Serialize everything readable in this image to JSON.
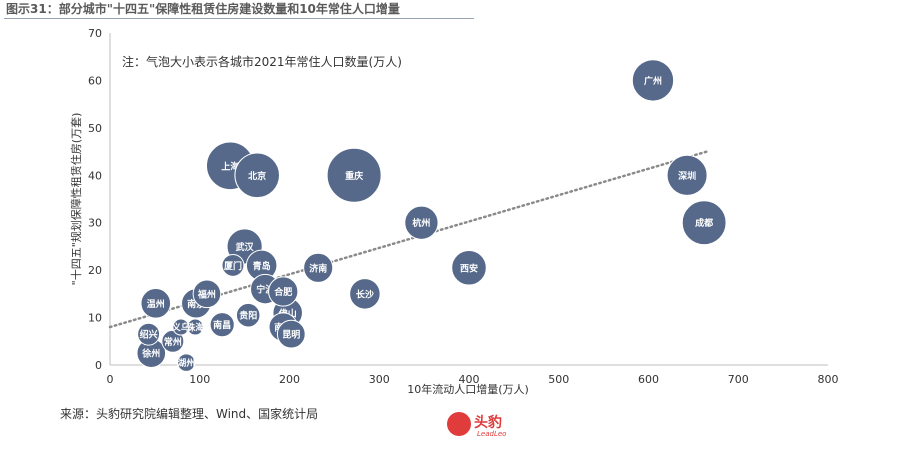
{
  "figure_title": "图示31：部分城市\"十四五\"保障性租赁住房建设数量和10年常住人口增量",
  "source": "来源：头豹研究院编辑整理、Wind、国家统计局",
  "brand": {
    "name": "头豹",
    "sub": "LeadLeo"
  },
  "colors": {
    "bubble": "#56698a",
    "bubble_stroke": "#ffffff",
    "trend": "#8a8a8a",
    "axis": "#bfbfbf",
    "text": "#333333",
    "brand": "#e03c3c"
  },
  "chart_data": {
    "type": "scatter",
    "title": "",
    "note": "注：气泡大小表示各城市2021年常住人口数量(万人)",
    "xlabel": "10年流动人口增量(万人)",
    "ylabel": "\"十四五\"规划保障性租赁住房(万套)",
    "xlim": [
      0,
      800
    ],
    "ylim": [
      0,
      70
    ],
    "xticks": [
      0,
      100,
      200,
      300,
      400,
      500,
      600,
      700,
      800
    ],
    "yticks": [
      0,
      10,
      20,
      30,
      40,
      50,
      60,
      70
    ],
    "grid": false,
    "trendline": {
      "style": "dotted",
      "x": [
        0,
        665
      ],
      "y": [
        8.0,
        45.0
      ]
    },
    "points": [
      {
        "label": "广州",
        "x": 605,
        "y": 60,
        "size": 1881
      },
      {
        "label": "深圳",
        "x": 643,
        "y": 40,
        "size": 1768
      },
      {
        "label": "成都",
        "x": 662,
        "y": 30,
        "size": 2119
      },
      {
        "label": "重庆",
        "x": 272,
        "y": 40,
        "size": 3212
      },
      {
        "label": "上海",
        "x": 134,
        "y": 42,
        "size": 2489
      },
      {
        "label": "北京",
        "x": 164,
        "y": 40,
        "size": 2189
      },
      {
        "label": "杭州",
        "x": 347,
        "y": 30,
        "size": 1220
      },
      {
        "label": "西安",
        "x": 400,
        "y": 20.5,
        "size": 1316
      },
      {
        "label": "长沙",
        "x": 284,
        "y": 15,
        "size": 1024
      },
      {
        "label": "武汉",
        "x": 150,
        "y": 25,
        "size": 1365
      },
      {
        "label": "济南",
        "x": 232,
        "y": 20.5,
        "size": 934
      },
      {
        "label": "厦门",
        "x": 137,
        "y": 21,
        "size": 528
      },
      {
        "label": "青岛",
        "x": 169,
        "y": 21,
        "size": 1025
      },
      {
        "label": "合肥",
        "x": 193,
        "y": 15.5,
        "size": 946
      },
      {
        "label": "宁波",
        "x": 173,
        "y": 16,
        "size": 954
      },
      {
        "label": "福州",
        "x": 108,
        "y": 15,
        "size": 842
      },
      {
        "label": "南京",
        "x": 96,
        "y": 13,
        "size": 942
      },
      {
        "label": "温州",
        "x": 51,
        "y": 13,
        "size": 964
      },
      {
        "label": "佛山",
        "x": 198,
        "y": 11,
        "size": 961
      },
      {
        "label": "贵阳",
        "x": 154,
        "y": 10.5,
        "size": 610
      },
      {
        "label": "南宁",
        "x": 193,
        "y": 8,
        "size": 883
      },
      {
        "label": "昆明",
        "x": 202,
        "y": 6.5,
        "size": 850
      },
      {
        "label": "南昌",
        "x": 125,
        "y": 8.5,
        "size": 643
      },
      {
        "label": "珠海",
        "x": 95,
        "y": 8,
        "size": 246
      },
      {
        "label": "义乌",
        "x": 79,
        "y": 8,
        "size": 188
      },
      {
        "label": "绍兴",
        "x": 43,
        "y": 6.5,
        "size": 531
      },
      {
        "label": "常州",
        "x": 70,
        "y": 5,
        "size": 531
      },
      {
        "label": "徐州",
        "x": 46,
        "y": 2.5,
        "size": 903
      },
      {
        "label": "湖州",
        "x": 85,
        "y": 0.5,
        "size": 340
      }
    ]
  }
}
